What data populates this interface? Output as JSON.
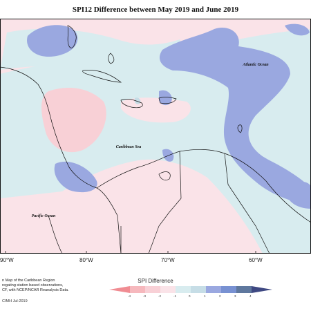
{
  "title": "SPI12 Difference between May 2019 and June 2019",
  "map_labels": {
    "atlantic": "Atlantic Ocean",
    "caribbean": "Caribbean Sea",
    "pacific": "Pacific Ocean"
  },
  "lon_ticks": [
    "90°W",
    "80°W",
    "70°W",
    "60°W"
  ],
  "credit_lines": [
    "n Map of the Caribbean Region",
    "regating station based observations,",
    "CF, with NCEP/NCAR Reanalysis Data."
  ],
  "footer": "CIMH Jul-2019",
  "legend": {
    "title": "SPI Difference",
    "labels": [
      "-4",
      "-3",
      "-2",
      "-1",
      "0",
      "1",
      "2",
      "3",
      "4"
    ],
    "colors": [
      "#f08c92",
      "#f6b8bd",
      "#f8d0d6",
      "#fae3e8",
      "#d8ecef",
      "#c6dde6",
      "#9aa8e0",
      "#7891d2",
      "#5f789e",
      "#3e4882"
    ]
  }
}
